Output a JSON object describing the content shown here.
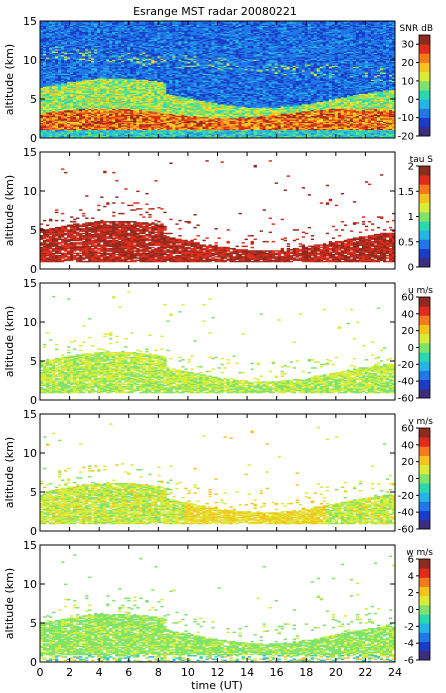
{
  "chart_data": {
    "type": "heatmap",
    "title": "Esrange MST radar 20080221",
    "xlabel": "time (UT)",
    "xticks": [
      0,
      2,
      4,
      6,
      8,
      10,
      12,
      14,
      16,
      18,
      20,
      22,
      24
    ],
    "xlim": [
      0,
      24
    ],
    "panels": [
      {
        "ylabel": "altitude (km)",
        "ylim": [
          0,
          15
        ],
        "yticks": [
          0,
          5,
          10,
          15
        ],
        "colorbar_label": "SNR dB",
        "colorbar_ticks": [
          -20,
          -10,
          0,
          10,
          20,
          30
        ],
        "colorbar_range": [
          -20,
          35
        ]
      },
      {
        "ylabel": "altitude (km)",
        "ylim": [
          0,
          15
        ],
        "yticks": [
          0,
          5,
          10,
          15
        ],
        "colorbar_label": "tau S",
        "colorbar_ticks": [
          "0",
          "0.5",
          "1",
          "1.5",
          "2"
        ],
        "colorbar_range": [
          0,
          2
        ]
      },
      {
        "ylabel": "altitude (km)",
        "ylim": [
          0,
          15
        ],
        "yticks": [
          0,
          5,
          10,
          15
        ],
        "colorbar_label": "u m/s",
        "colorbar_ticks": [
          -60,
          -40,
          -20,
          0,
          20,
          40,
          60
        ],
        "colorbar_range": [
          -60,
          60
        ]
      },
      {
        "ylabel": "altitude (km)",
        "ylim": [
          0,
          15
        ],
        "yticks": [
          0,
          5,
          10,
          15
        ],
        "colorbar_label": "v m/s",
        "colorbar_ticks": [
          -60,
          -40,
          -20,
          0,
          20,
          40,
          60
        ],
        "colorbar_range": [
          -60,
          60
        ]
      },
      {
        "ylabel": "altitude (km)",
        "ylim": [
          0,
          15
        ],
        "yticks": [
          0,
          5,
          10,
          15
        ],
        "colorbar_label": "w m/s",
        "colorbar_ticks": [
          -6,
          -4,
          -2,
          0,
          2,
          4,
          6
        ],
        "colorbar_range": [
          -6,
          6
        ]
      }
    ],
    "colormap": [
      "#3b2d80",
      "#1a3cc8",
      "#1e78e8",
      "#25b4e6",
      "#2ad8b0",
      "#7ee36a",
      "#d9ec3a",
      "#f7c21e",
      "#f67a1c",
      "#e02c1c",
      "#8e2a1e"
    ]
  }
}
